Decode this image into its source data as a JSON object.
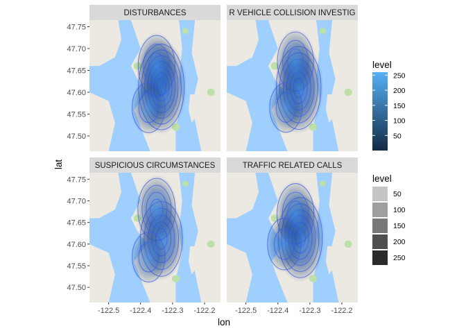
{
  "chart_data": {
    "type": "heatmap",
    "subtype": "faceted 2d density contour over map tiles",
    "xlabel": "lon",
    "ylabel": "lat",
    "xlim": [
      -122.56,
      -122.15
    ],
    "ylim": [
      47.465,
      47.765
    ],
    "x_ticks": [
      {
        "value": -122.5,
        "label": "-122.5"
      },
      {
        "value": -122.4,
        "label": "-122.4"
      },
      {
        "value": -122.3,
        "label": "-122.3"
      },
      {
        "value": -122.2,
        "label": "-122.2"
      }
    ],
    "y_ticks": [
      {
        "value": 47.5,
        "label": "47.50"
      },
      {
        "value": 47.55,
        "label": "47.55"
      },
      {
        "value": 47.6,
        "label": "47.60"
      },
      {
        "value": 47.65,
        "label": "47.65"
      },
      {
        "value": 47.7,
        "label": "47.70"
      },
      {
        "value": 47.75,
        "label": "47.75"
      }
    ],
    "facets": [
      {
        "label": "DISTURBANCES",
        "hotspots": [
          {
            "lon": -122.335,
            "lat": 47.612,
            "peak_level": 255
          },
          {
            "lon": -122.35,
            "lat": 47.66,
            "peak_level": 120
          },
          {
            "lon": -122.375,
            "lat": 47.565,
            "peak_level": 60
          }
        ]
      },
      {
        "label": "MOTOR VEHICLE COLLISION INVESTIGATION",
        "visible_label": "R VEHICLE COLLISION INVESTIG",
        "hotspots": [
          {
            "lon": -122.335,
            "lat": 47.61,
            "peak_level": 240
          },
          {
            "lon": -122.345,
            "lat": 47.67,
            "peak_level": 110
          },
          {
            "lon": -122.375,
            "lat": 47.565,
            "peak_level": 55
          }
        ]
      },
      {
        "label": "SUSPICIOUS CIRCUMSTANCES",
        "hotspots": [
          {
            "lon": -122.335,
            "lat": 47.612,
            "peak_level": 200
          },
          {
            "lon": -122.35,
            "lat": 47.68,
            "peak_level": 130
          },
          {
            "lon": -122.375,
            "lat": 47.57,
            "peak_level": 60
          }
        ]
      },
      {
        "label": "TRAFFIC RELATED CALLS",
        "hotspots": [
          {
            "lon": -122.33,
            "lat": 47.615,
            "peak_level": 230
          },
          {
            "lon": -122.345,
            "lat": 47.67,
            "peak_level": 120
          },
          {
            "lon": -122.38,
            "lat": 47.6,
            "peak_level": 70
          }
        ]
      }
    ],
    "legends": [
      {
        "title": "level",
        "kind": "colorbar",
        "range": [
          0,
          260
        ],
        "breaks": [
          50,
          100,
          150,
          200,
          250
        ],
        "labels": [
          "50",
          "100",
          "150",
          "200",
          "250"
        ],
        "low_color": "#132B43",
        "high_color": "#56B1F7"
      },
      {
        "title": "level",
        "kind": "alpha",
        "breaks": [
          50,
          100,
          150,
          200,
          250
        ],
        "labels": [
          "50",
          "100",
          "150",
          "200",
          "250"
        ],
        "swatch_colors": [
          "#c4c4c4",
          "#9f9f9f",
          "#787878",
          "#4f4f4f",
          "#2b2b2b"
        ]
      }
    ],
    "grid": false,
    "legend_position": "right"
  },
  "colors": {
    "strip_bg": "#d9d9d9",
    "water": "#9fcfff",
    "land": "#ece9e2",
    "park": "#bde0a8",
    "contour": "#3d5ef0"
  }
}
